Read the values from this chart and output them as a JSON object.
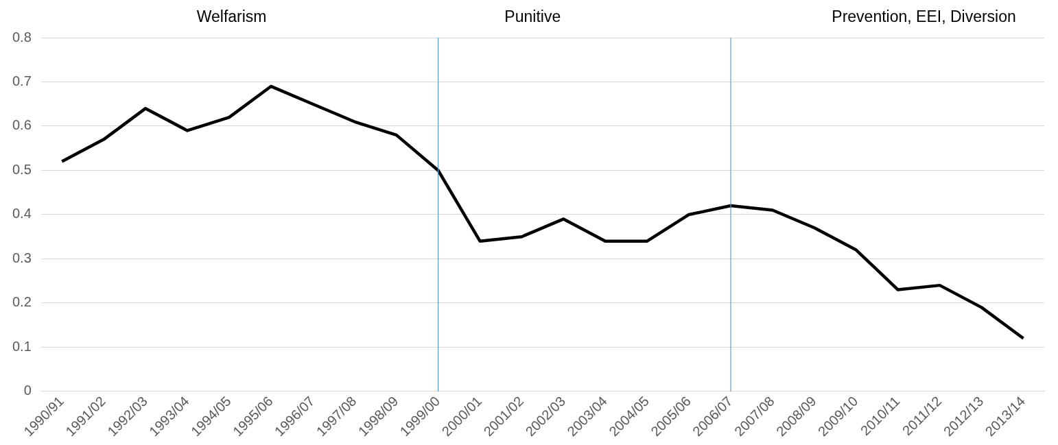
{
  "chart_data": {
    "type": "line",
    "categories": [
      "1990/91",
      "1991/02",
      "1992/03",
      "1993/04",
      "1994/05",
      "1995/06",
      "1996/07",
      "1997/08",
      "1998/09",
      "1999/00",
      "2000/01",
      "2001/02",
      "2002/03",
      "2003/04",
      "2004/05",
      "2005/06",
      "2006/07",
      "2007/08",
      "2008/09",
      "2009/10",
      "2010/11",
      "2011/12",
      "2012/13",
      "2013/14"
    ],
    "series": [
      {
        "color": "#000000",
        "values": [
          0.52,
          0.57,
          0.64,
          0.59,
          0.62,
          0.69,
          0.65,
          0.61,
          0.58,
          0.5,
          0.34,
          0.35,
          0.39,
          0.34,
          0.34,
          0.4,
          0.42,
          0.41,
          0.37,
          0.32,
          0.23,
          0.24,
          0.19,
          0.12
        ]
      }
    ],
    "ylim": [
      0,
      0.8
    ],
    "yticks": [
      0,
      0.1,
      0.2,
      0.3,
      0.4,
      0.5,
      0.6,
      0.7,
      0.8
    ],
    "grid": "y",
    "legend": false,
    "marker": "none",
    "line_style": "solid",
    "ref_lines": [
      {
        "axis": "x",
        "value": "1999/00",
        "color": "#5b9bd5"
      },
      {
        "axis": "x",
        "value": "2006/07",
        "color": "#5b9bd5"
      }
    ],
    "annotations": [
      "Welfarism",
      "Punitive",
      "Prevention, EEI, Diversion"
    ]
  }
}
